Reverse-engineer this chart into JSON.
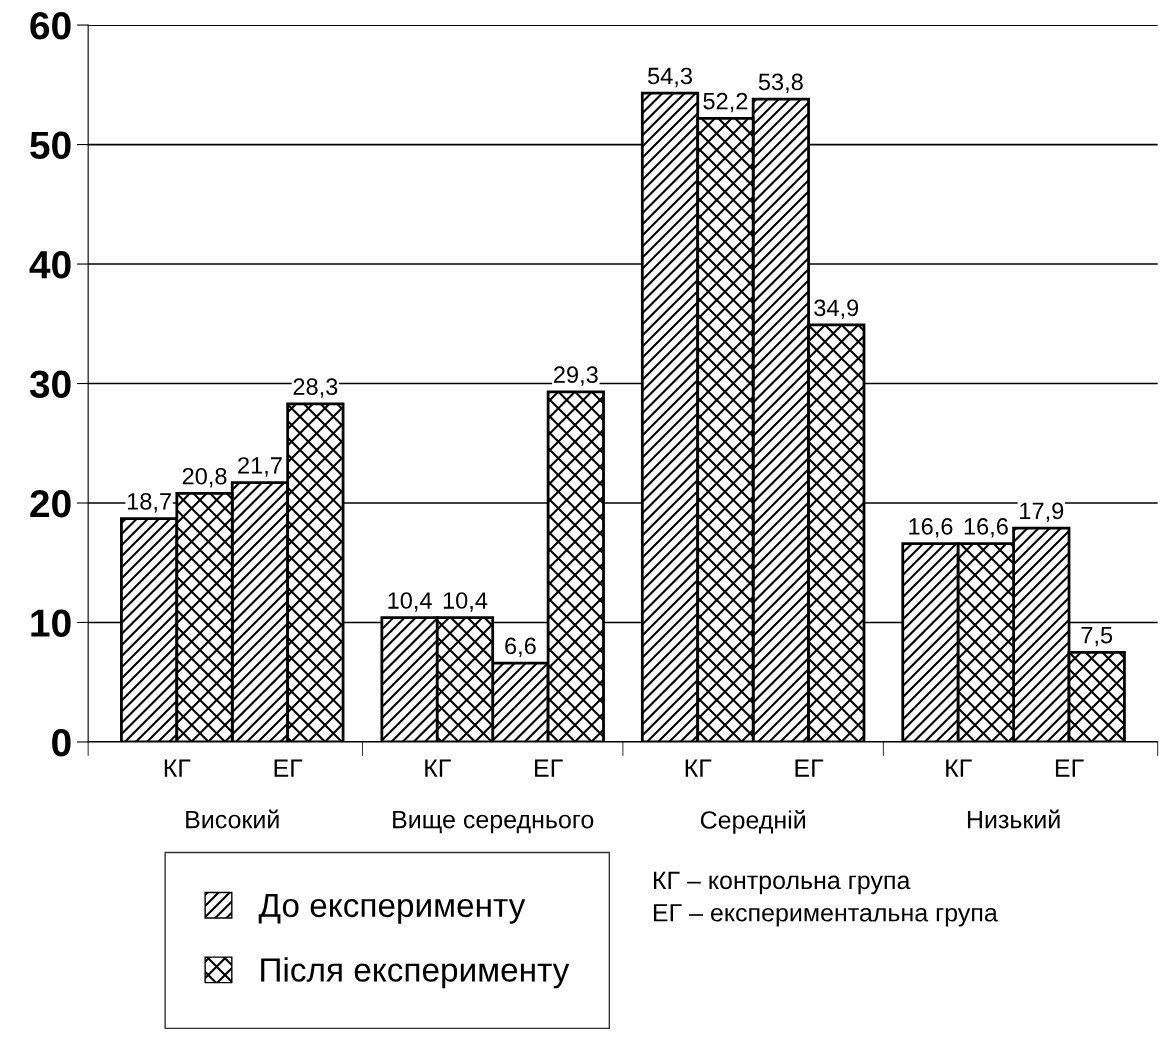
{
  "chart_data": {
    "type": "bar",
    "categories": [
      "КГ",
      "ЕГ",
      "КГ",
      "ЕГ",
      "КГ",
      "ЕГ",
      "КГ",
      "ЕГ"
    ],
    "series": [
      {
        "name": "До експерименту",
        "color": "#000000",
        "values": [
          18.7,
          21.7,
          10.4,
          6.6,
          54.3,
          53.8,
          16.6,
          17.9
        ],
        "value_labels": [
          "18,7",
          "21,7",
          "10,4",
          "6,6",
          "54,3",
          "53,8",
          "16,6",
          "17,9"
        ]
      },
      {
        "name": "Після експерименту",
        "color": "#000000",
        "values": [
          20.8,
          28.3,
          10.4,
          29.3,
          52.2,
          34.9,
          16.6,
          7.5
        ],
        "value_labels": [
          "20,8",
          "28,3",
          "10,4",
          "29,3",
          "52,2",
          "34,9",
          "16,6",
          "7,5"
        ]
      }
    ],
    "annotations": [
      "Високий",
      "Вище середнього",
      "Середній",
      "Низький",
      "КГ – контрольна група",
      "ЕГ – експериментальна група"
    ],
    "ylim": [
      0,
      60
    ],
    "yticks": [
      0,
      10,
      20,
      30,
      40,
      50,
      60
    ],
    "grid": "y",
    "legend": "bottom left"
  }
}
